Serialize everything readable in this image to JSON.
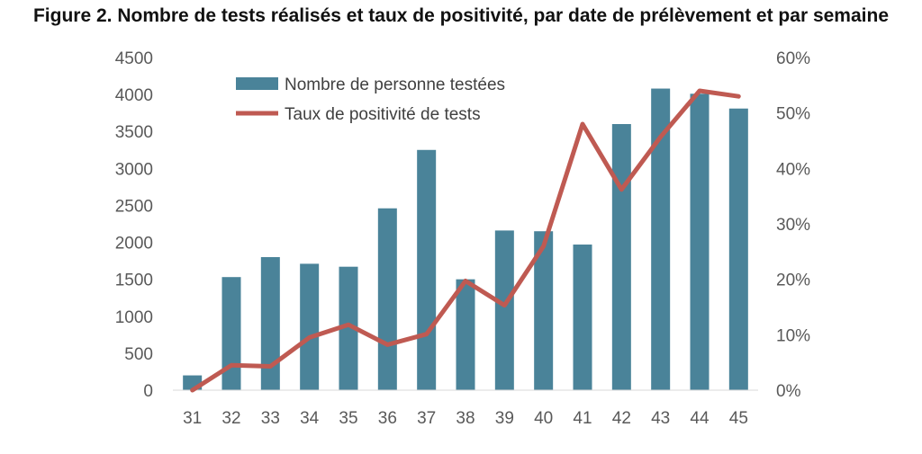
{
  "title": "Figure 2. Nombre de tests réalisés et taux de positivité, par date de prélèvement et par semaine",
  "chart_data": {
    "type": "bar",
    "title": "Figure 2. Nombre de tests réalisés et taux de positivité, par date de prélèvement et par semaine",
    "categories": [
      "31",
      "32",
      "33",
      "34",
      "35",
      "36",
      "37",
      "38",
      "39",
      "40",
      "41",
      "42",
      "43",
      "44",
      "45"
    ],
    "series": [
      {
        "name": "Nombre de personne testées",
        "type": "bar",
        "axis": "left",
        "color": "#4a8399",
        "values": [
          200,
          1530,
          1800,
          1710,
          1670,
          2460,
          3250,
          1500,
          2160,
          2150,
          1970,
          3600,
          4080,
          4010,
          3810
        ]
      },
      {
        "name": "Taux de positivité de tests",
        "type": "line",
        "axis": "right",
        "color": "#bf5a52",
        "values": [
          0.0,
          4.5,
          4.3,
          9.5,
          11.8,
          8.2,
          10.1,
          19.7,
          15.3,
          26.0,
          48.0,
          36.2,
          45.7,
          54.0,
          53.0
        ]
      }
    ],
    "y_left": {
      "min": 0,
      "max": 4500,
      "ticks": [
        "0",
        "500",
        "1000",
        "1500",
        "2000",
        "2500",
        "3000",
        "3500",
        "4000",
        "4500"
      ]
    },
    "y_right": {
      "min": 0,
      "max": 60,
      "unit": "%",
      "ticks": [
        "0%",
        "10%",
        "20%",
        "30%",
        "40%",
        "50%",
        "60%"
      ]
    },
    "xlabel": "",
    "ylabel": "",
    "grid": false,
    "legend_position": "top-left"
  }
}
